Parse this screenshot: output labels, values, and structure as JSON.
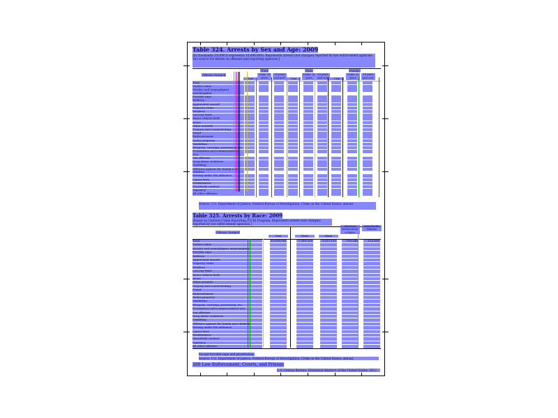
{
  "table324": {
    "title": "Table 324. Arrests by Sex and Age: 2009",
    "headnote": "[In thousands (10,690.6 represents 10,690,600). Represents arrests (not charges) reported by law enforcement agencies. See source for details on offenses and reporting agencies.]",
    "stub_header": "Offense charged",
    "groups": [
      "Total",
      "Male",
      "Female"
    ],
    "subcolumns": [
      "Total",
      "Under 18 years",
      "18 years and over"
    ],
    "offenses": [
      "Total",
      "Violent crime",
      "Murder and nonnegligent manslaughter",
      "Forcible rape",
      "Robbery",
      "Aggravated assault",
      "Property crime",
      "Burglary",
      "Larceny-theft",
      "Motor vehicle theft",
      "Arson",
      "Other assaults",
      "Forgery and counterfeiting",
      "Fraud",
      "Embezzlement",
      "Stolen property",
      "Vandalism",
      "Weapons; carrying, possessing, etc.",
      "Prostitution and commercialized vice",
      "Sex offenses",
      "Drug abuse violations",
      "Gambling",
      "Offenses against the family and children",
      "Driving under the influence",
      "Liquor laws",
      "Drunkenness",
      "Disorderly conduct",
      "Vagrancy",
      "All other offenses"
    ],
    "footnote": "Source: U.S. Department of Justice, Federal Bureau of Investigation, Crime in the United States, annual."
  },
  "table325": {
    "title": "Table 325. Arrests by Race: 2009",
    "headnote": "[Based on Uniform Crime Reporting (UCR) Program. Represents arrests (not charges) reported by law enforcement agencies.]",
    "stub_header": "Offense charged",
    "columns": [
      "Total",
      "White",
      "Black",
      "American Indian/Alaskan Native",
      "Asian/Pacific Islander"
    ],
    "total_row": [
      "10,690,561",
      "7,389,208",
      "3,027,153",
      "150,544",
      "123,656"
    ],
    "offenses": [
      "Total",
      "Violent crime",
      "Murder and nonnegligent manslaughter",
      "Forcible rape",
      "Robbery",
      "Aggravated assault",
      "Property crime",
      "Burglary",
      "Larceny-theft",
      "Motor vehicle theft",
      "Arson",
      "Other assaults",
      "Forgery and counterfeiting",
      "Fraud",
      "Embezzlement",
      "Stolen property",
      "Vandalism",
      "Weapons; carrying, possessing, etc.",
      "Prostitution and commercialized vice",
      "Sex offenses",
      "Drug abuse violations",
      "Gambling",
      "Offenses against the family and children",
      "Driving under the influence",
      "Liquor laws",
      "Drunkenness",
      "Disorderly conduct",
      "Vagrancy",
      "All other offenses"
    ],
    "footnote1": "Except forcible rape and prostitution.",
    "footnote2": "Source: U.S. Department of Justice, Federal Bureau of Investigation, Crime in the United States, annual."
  },
  "footer": {
    "page_label": "200 Law Enforcement, Courts, and Prisons",
    "right_note": "U.S. Census Bureau, Statistical Abstract of the United States: 2012"
  },
  "colors": {
    "highlight": "#5f5fff",
    "text": "#101050"
  }
}
